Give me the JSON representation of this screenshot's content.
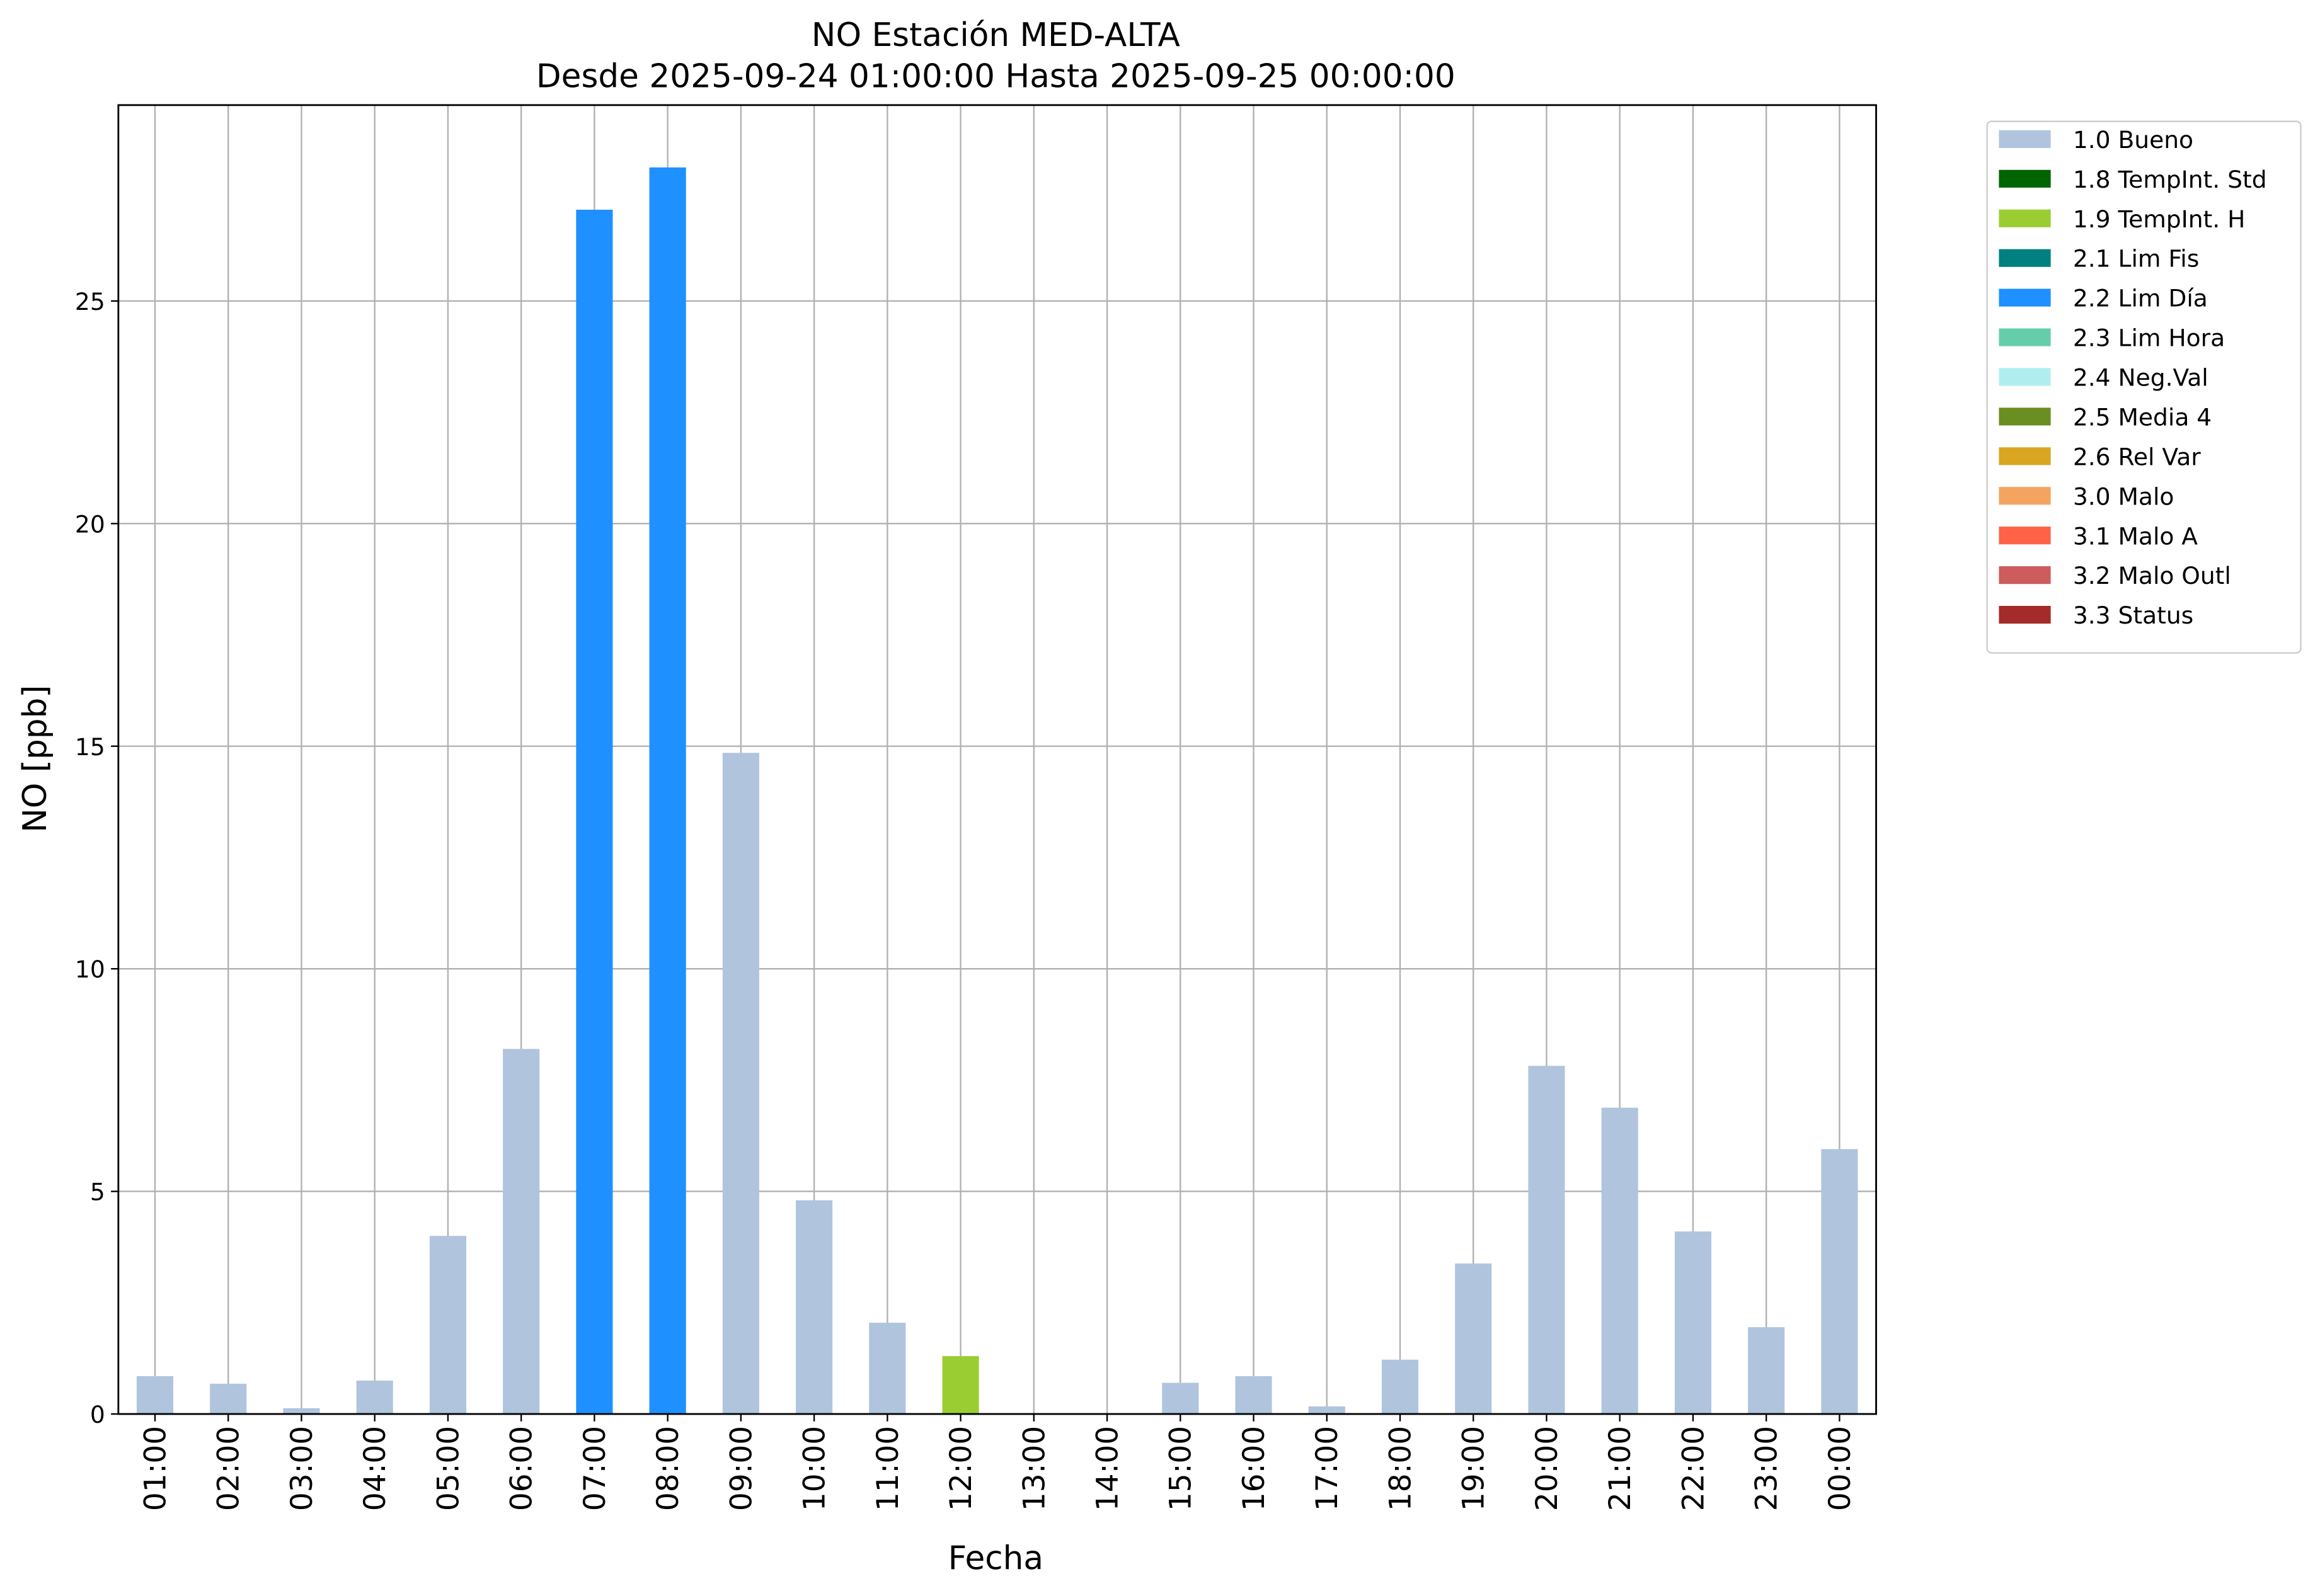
{
  "chart_data": {
    "type": "bar",
    "stacked": true,
    "title": "NO Estación MED-ALTA",
    "subtitle": "Desde 2025-09-24 01:00:00 Hasta 2025-09-25 00:00:00",
    "xlabel": "Fecha",
    "ylabel": "NO [ppb]",
    "categories": [
      "01:00",
      "02:00",
      "03:00",
      "04:00",
      "05:00",
      "06:00",
      "07:00",
      "08:00",
      "09:00",
      "10:00",
      "11:00",
      "12:00",
      "13:00",
      "14:00",
      "15:00",
      "16:00",
      "17:00",
      "18:00",
      "19:00",
      "20:00",
      "21:00",
      "22:00",
      "23:00",
      "00:00"
    ],
    "series": [
      {
        "name": "1.0 Bueno",
        "color": "#b0c4de",
        "values": [
          0.85,
          0.68,
          0.13,
          0.75,
          4.0,
          8.2,
          null,
          null,
          14.85,
          4.8,
          2.05,
          null,
          null,
          null,
          0.7,
          0.85,
          0.17,
          1.22,
          3.38,
          7.82,
          6.88,
          4.1,
          1.95,
          5.95
        ]
      },
      {
        "name": "1.8 TempInt. Std",
        "color": "#006400",
        "values": [
          null,
          null,
          null,
          null,
          null,
          null,
          null,
          null,
          null,
          null,
          null,
          null,
          null,
          null,
          null,
          null,
          null,
          null,
          null,
          null,
          null,
          null,
          null,
          null
        ]
      },
      {
        "name": "1.9 TempInt. H",
        "color": "#9acd32",
        "values": [
          null,
          null,
          null,
          null,
          null,
          null,
          null,
          null,
          null,
          null,
          null,
          1.3,
          null,
          null,
          null,
          null,
          null,
          null,
          null,
          null,
          null,
          null,
          null,
          null
        ]
      },
      {
        "name": "2.1 Lim Fis",
        "color": "#008080",
        "values": [
          null,
          null,
          null,
          null,
          null,
          null,
          null,
          null,
          null,
          null,
          null,
          null,
          null,
          null,
          null,
          null,
          null,
          null,
          null,
          null,
          null,
          null,
          null,
          null
        ]
      },
      {
        "name": "2.2 Lim Día",
        "color": "#1e90ff",
        "values": [
          null,
          null,
          null,
          null,
          null,
          null,
          27.05,
          28.0,
          null,
          null,
          null,
          null,
          null,
          null,
          null,
          null,
          null,
          null,
          null,
          null,
          null,
          null,
          null,
          null
        ]
      },
      {
        "name": "2.3 Lim Hora",
        "color": "#66cdaa",
        "values": [
          null,
          null,
          null,
          null,
          null,
          null,
          null,
          null,
          null,
          null,
          null,
          null,
          null,
          null,
          null,
          null,
          null,
          null,
          null,
          null,
          null,
          null,
          null,
          null
        ]
      },
      {
        "name": "2.4 Neg.Val",
        "color": "#afeeee",
        "values": [
          null,
          null,
          null,
          null,
          null,
          null,
          null,
          null,
          null,
          null,
          null,
          null,
          null,
          null,
          null,
          null,
          null,
          null,
          null,
          null,
          null,
          null,
          null,
          null
        ]
      },
      {
        "name": "2.5 Media 4",
        "color": "#6b8e23",
        "values": [
          null,
          null,
          null,
          null,
          null,
          null,
          null,
          null,
          null,
          null,
          null,
          null,
          null,
          null,
          null,
          null,
          null,
          null,
          null,
          null,
          null,
          null,
          null,
          null
        ]
      },
      {
        "name": "2.6 Rel Var",
        "color": "#daa520",
        "values": [
          null,
          null,
          null,
          null,
          null,
          null,
          null,
          null,
          null,
          null,
          null,
          null,
          null,
          null,
          null,
          null,
          null,
          null,
          null,
          null,
          null,
          null,
          null,
          null
        ]
      },
      {
        "name": "3.0 Malo",
        "color": "#f4a460",
        "values": [
          null,
          null,
          null,
          null,
          null,
          null,
          null,
          null,
          null,
          null,
          null,
          null,
          null,
          null,
          null,
          null,
          null,
          null,
          null,
          null,
          null,
          null,
          null,
          null
        ]
      },
      {
        "name": "3.1 Malo A",
        "color": "#ff6347",
        "values": [
          null,
          null,
          null,
          null,
          null,
          null,
          null,
          null,
          null,
          null,
          null,
          null,
          null,
          null,
          null,
          null,
          null,
          null,
          null,
          null,
          null,
          null,
          null,
          null
        ]
      },
      {
        "name": "3.2 Malo Outl",
        "color": "#cd5c5c",
        "values": [
          null,
          null,
          null,
          null,
          null,
          null,
          null,
          null,
          null,
          null,
          null,
          null,
          null,
          null,
          null,
          null,
          null,
          null,
          null,
          null,
          null,
          null,
          null,
          null
        ]
      },
      {
        "name": "3.3 Status",
        "color": "#a52a2a",
        "values": [
          null,
          null,
          null,
          null,
          null,
          null,
          null,
          null,
          null,
          null,
          null,
          null,
          null,
          null,
          null,
          null,
          null,
          null,
          null,
          null,
          null,
          null,
          null,
          null
        ]
      }
    ],
    "ylim": [
      0,
      29.4
    ],
    "yticks": [
      0,
      5,
      10,
      15,
      20,
      25
    ],
    "grid": true,
    "legend": "outside upper right"
  }
}
